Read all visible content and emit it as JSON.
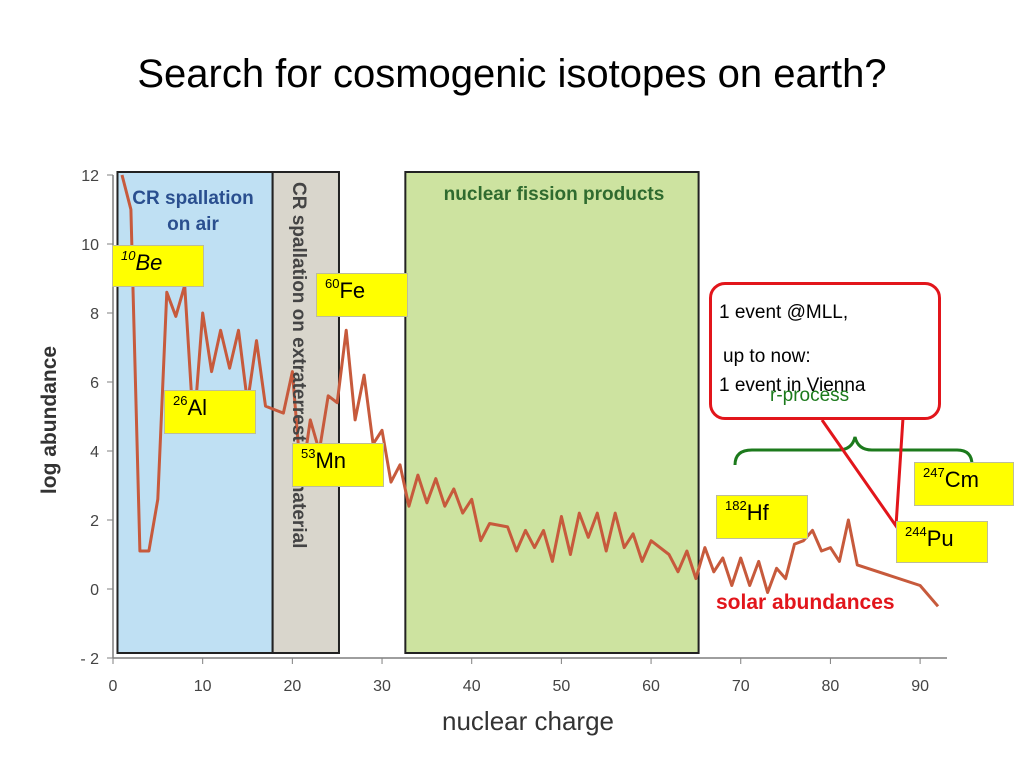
{
  "slide_title": "Search for cosmogenic isotopes on earth?",
  "colors": {
    "spallation_air_band": "#bfe0f3",
    "extraterrestrial_band": "#d9d6cc",
    "fission_band": "#cde3a0",
    "band_border": "#222222",
    "line_color": "#c75a3c",
    "red": "#e2151b",
    "green": "#1c7a1c",
    "yellow": "#ffff00",
    "region_text_blue": "#2a4f8f",
    "region_text_green": "#2f6b2f"
  },
  "chart_data": {
    "type": "line",
    "xlabel": "nuclear charge",
    "ylabel": "log abundance",
    "xlim": [
      0,
      93
    ],
    "ylim": [
      -2,
      12
    ],
    "x_ticks": [
      "0",
      "10",
      "20",
      "30",
      "40",
      "50",
      "60",
      "70",
      "80",
      "90"
    ],
    "y_ticks": [
      "12",
      "10",
      "8",
      "6",
      "4",
      "2",
      "0",
      "- 2"
    ],
    "grid": false,
    "series": [
      {
        "name": "solar abundances",
        "x": [
          1,
          2,
          3,
          4,
          5,
          6,
          7,
          8,
          9,
          10,
          11,
          12,
          13,
          14,
          15,
          16,
          17,
          18,
          19,
          20,
          21,
          22,
          23,
          24,
          25,
          26,
          27,
          28,
          29,
          30,
          31,
          32,
          33,
          34,
          35,
          36,
          37,
          38,
          39,
          40,
          41,
          42,
          44,
          45,
          46,
          47,
          48,
          49,
          50,
          51,
          52,
          53,
          54,
          55,
          56,
          57,
          58,
          59,
          60,
          62,
          63,
          64,
          65,
          66,
          67,
          68,
          69,
          70,
          71,
          72,
          73,
          74,
          75,
          76,
          77,
          78,
          79,
          80,
          81,
          82,
          83,
          90,
          92
        ],
        "y": [
          12,
          11,
          1.1,
          1.1,
          2.6,
          8.6,
          7.9,
          8.8,
          4.6,
          8.0,
          6.3,
          7.5,
          6.4,
          7.5,
          5.4,
          7.2,
          5.3,
          5.2,
          5.1,
          6.3,
          3.1,
          4.9,
          4.0,
          5.6,
          5.4,
          7.5,
          4.9,
          6.2,
          4.2,
          4.6,
          3.1,
          3.6,
          2.4,
          3.3,
          2.5,
          3.2,
          2.4,
          2.9,
          2.2,
          2.6,
          1.4,
          1.9,
          1.8,
          1.1,
          1.7,
          1.2,
          1.7,
          0.8,
          2.1,
          1.0,
          2.2,
          1.5,
          2.2,
          1.1,
          2.2,
          1.2,
          1.6,
          0.8,
          1.4,
          1.0,
          0.5,
          1.1,
          0.3,
          1.2,
          0.5,
          0.9,
          0.1,
          0.9,
          0.1,
          0.8,
          -0.1,
          0.6,
          0.3,
          1.3,
          1.4,
          1.7,
          1.1,
          1.2,
          0.8,
          2.0,
          0.7,
          0.1,
          -0.5
        ]
      }
    ],
    "regions": [
      {
        "label_line1": "CR spallation",
        "label_line2": "on air",
        "x_start": 0.5,
        "x_end": 17.8
      },
      {
        "label": "CR spallation on extraterrestrial material",
        "x_start": 17.8,
        "x_end": 25.2
      },
      {
        "label": "nuclear fission products",
        "x_start": 32.6,
        "x_end": 65.3
      }
    ],
    "series_label": "solar abundances",
    "isotopes": [
      {
        "mass": "10",
        "symbol": "Be"
      },
      {
        "mass": "26",
        "symbol": "Al"
      },
      {
        "mass": "60",
        "symbol": "Fe"
      },
      {
        "mass": "53",
        "symbol": "Mn"
      },
      {
        "mass": "182",
        "symbol": "Hf"
      },
      {
        "mass": "247",
        "symbol": "Cm"
      },
      {
        "mass": "244",
        "symbol": "Pu"
      }
    ],
    "callout": {
      "line1": "1 event @MLL,",
      "line2": "up to now:",
      "line3": "1 event in Vienna"
    },
    "bracket_label": "r-process"
  }
}
